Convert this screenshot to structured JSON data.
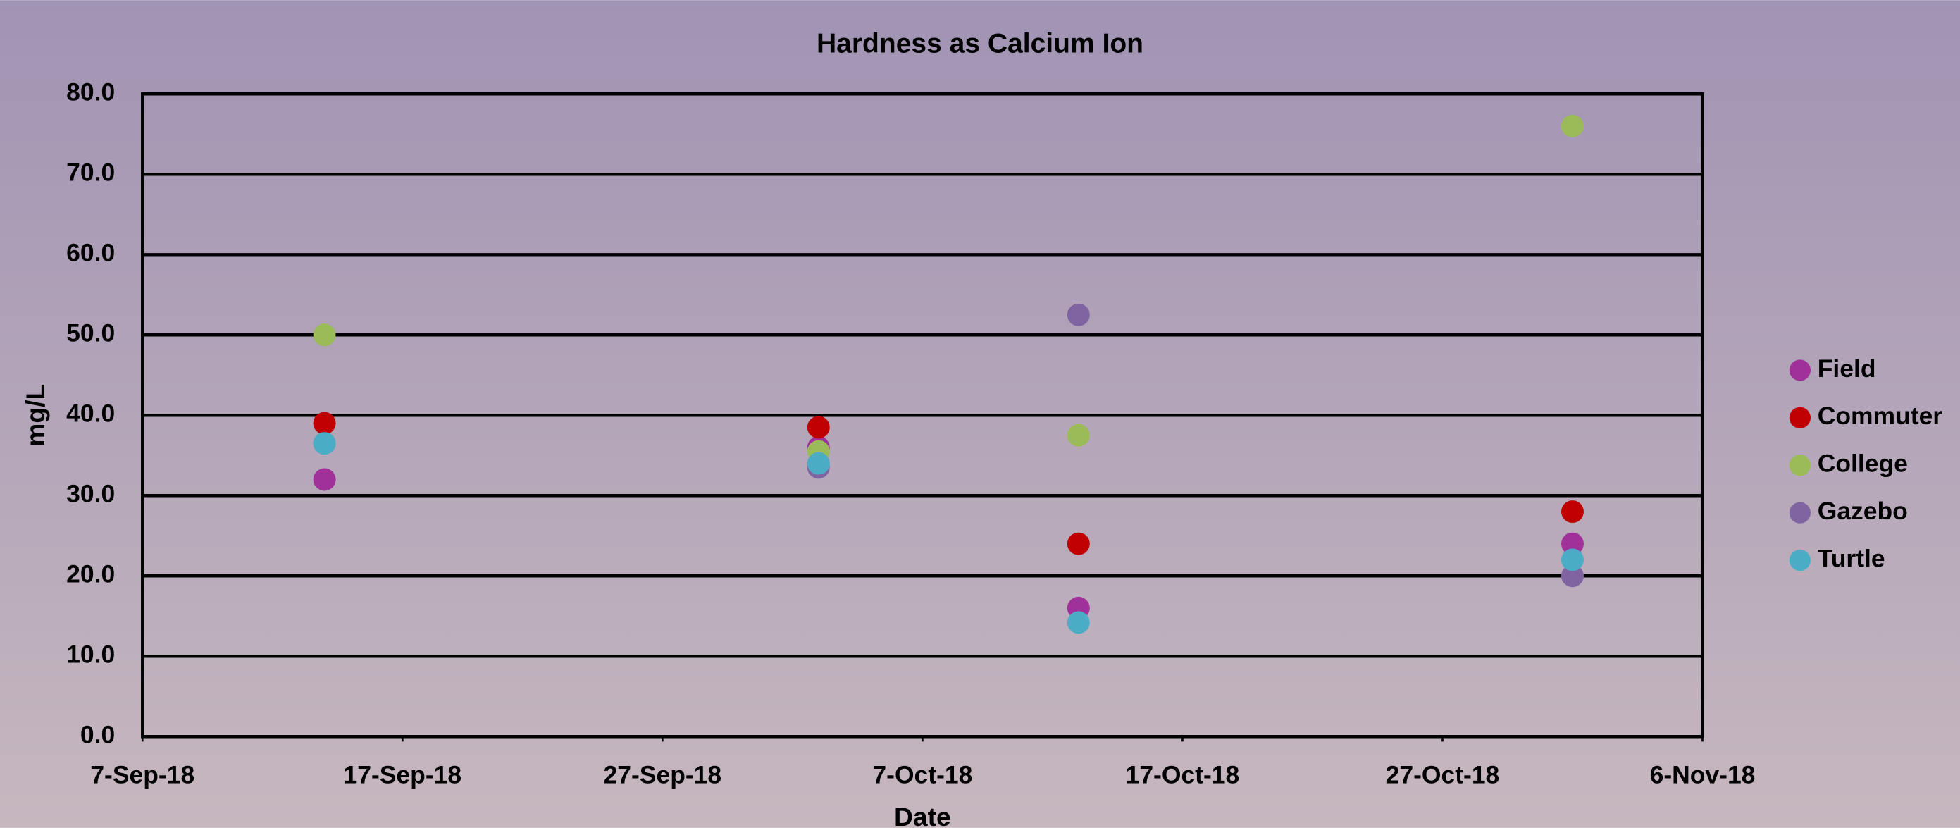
{
  "chart_data": {
    "type": "scatter",
    "title": "Hardness as Calcium Ion",
    "xlabel": "Date",
    "ylabel": "mg/L",
    "x": [
      "2018-09-14",
      "2018-10-03",
      "2018-10-13",
      "2018-11-01"
    ],
    "series": [
      {
        "name": "Field",
        "color": "#a0309a",
        "values": [
          32,
          36,
          16,
          24
        ]
      },
      {
        "name": "Commuter",
        "color": "#c00000",
        "values": [
          39,
          38.5,
          24,
          28
        ]
      },
      {
        "name": "College",
        "color": "#9bbb59",
        "values": [
          50,
          35.5,
          37.5,
          76
        ]
      },
      {
        "name": "Gazebo",
        "color": "#8064a2",
        "values": [
          36.5,
          33.5,
          52.5,
          20
        ]
      },
      {
        "name": "Turtle",
        "color": "#4bacc6",
        "values": [
          36.5,
          34,
          14.2,
          22
        ]
      }
    ],
    "xlim": [
      "2018-09-07",
      "2018-11-06"
    ],
    "xticks": [
      {
        "value": "2018-09-07",
        "label": "7-Sep-18"
      },
      {
        "value": "2018-09-17",
        "label": "17-Sep-18"
      },
      {
        "value": "2018-09-27",
        "label": "27-Sep-18"
      },
      {
        "value": "2018-10-07",
        "label": "7-Oct-18"
      },
      {
        "value": "2018-10-17",
        "label": "17-Oct-18"
      },
      {
        "value": "2018-10-27",
        "label": "27-Oct-18"
      },
      {
        "value": "2018-11-06",
        "label": "6-Nov-18"
      }
    ],
    "ylim": [
      0,
      80
    ],
    "yticks": [
      {
        "value": 0,
        "label": "0.0"
      },
      {
        "value": 10,
        "label": "10.0"
      },
      {
        "value": 20,
        "label": "20.0"
      },
      {
        "value": 30,
        "label": "30.0"
      },
      {
        "value": 40,
        "label": "40.0"
      },
      {
        "value": 50,
        "label": "50.0"
      },
      {
        "value": 60,
        "label": "60.0"
      },
      {
        "value": 70,
        "label": "70.0"
      },
      {
        "value": 80,
        "label": "80.0"
      }
    ],
    "grid": true,
    "legend": "right"
  }
}
